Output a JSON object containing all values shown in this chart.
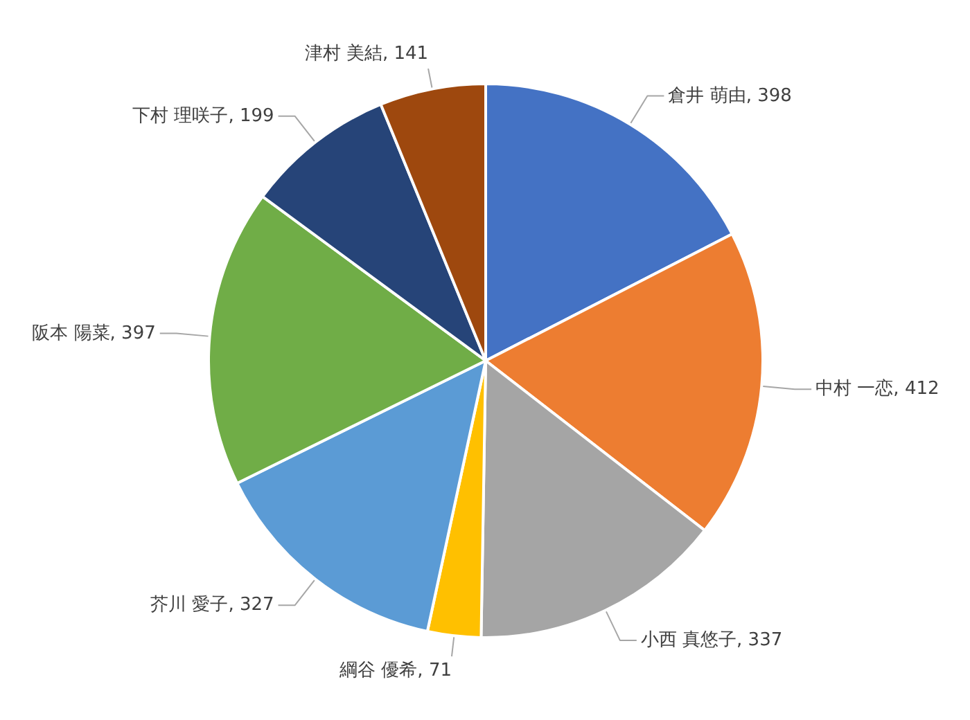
{
  "chart_data": {
    "type": "pie",
    "categories": [
      "倉井 萌由",
      "中村 一恋",
      "小西 真悠子",
      "綱谷 優希",
      "芥川 愛子",
      "阪本 陽菜",
      "下村 理咲子",
      "津村 美結"
    ],
    "values": [
      398,
      412,
      337,
      71,
      327,
      397,
      199,
      141
    ],
    "value_labels": [
      ", 398",
      ", 412",
      ", 337",
      ", 71",
      ", 327",
      ", 397",
      ", 199",
      ", 141"
    ],
    "colors": [
      "#4472c4",
      "#ed7d31",
      "#a5a5a5",
      "#ffc000",
      "#5b9bd5",
      "#70ad47",
      "#264478",
      "#9e480e"
    ]
  }
}
